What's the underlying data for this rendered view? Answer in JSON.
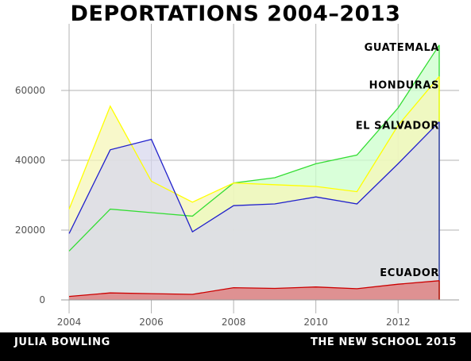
{
  "chart_data": {
    "type": "area",
    "title": "DEPORTATIONS 2004–2013",
    "xlabel": "",
    "ylabel": "",
    "x": [
      2004,
      2005,
      2006,
      2007,
      2008,
      2009,
      2010,
      2011,
      2012,
      2013
    ],
    "xlim": [
      2004,
      2013
    ],
    "ylim": [
      0,
      75000
    ],
    "x_ticks": [
      2004,
      2006,
      2008,
      2010,
      2012
    ],
    "y_ticks": [
      0,
      20000,
      40000,
      60000
    ],
    "x_tick_labels": [
      "2004",
      "2006",
      "2008",
      "2010",
      "2012"
    ],
    "y_tick_labels": [
      "0",
      "20000",
      "40000",
      "60000"
    ],
    "grid": true,
    "series": [
      {
        "name": "GUATEMALA",
        "values": [
          14000,
          26000,
          25000,
          24000,
          33500,
          35000,
          39000,
          41500,
          55000,
          73000
        ],
        "fill": "#ccffcc",
        "stroke": "#33dd33"
      },
      {
        "name": "HONDURAS",
        "values": [
          26000,
          55500,
          34000,
          28000,
          33500,
          33000,
          32500,
          31000,
          50000,
          64000
        ],
        "fill": "#f5f5b8",
        "stroke": "#ffff00"
      },
      {
        "name": "EL SALVADOR",
        "values": [
          19000,
          43000,
          46000,
          19500,
          27000,
          27500,
          29500,
          27500,
          39000,
          51000
        ],
        "fill": "#d8d8ee",
        "stroke": "#2020cc"
      },
      {
        "name": "ECUADOR",
        "values": [
          1000,
          2000,
          1800,
          1600,
          3500,
          3300,
          3700,
          3200,
          4500,
          5500
        ],
        "fill": "#dd7777",
        "stroke": "#cc0000"
      }
    ]
  },
  "footer": {
    "author": "JULIA BOWLING",
    "organization": "THE NEW SCHOOL 2015"
  }
}
